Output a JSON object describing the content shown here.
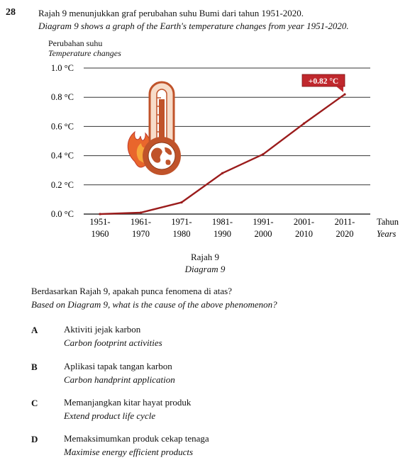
{
  "question": {
    "number": "28",
    "stem_ms": "Rajah 9 menunjukkan graf perubahan suhu Bumi dari tahun 1951-2020.",
    "stem_en": "Diagram 9 shows a graph of the Earth's temperature changes from year 1951-2020.",
    "caption_ms": "Rajah 9",
    "caption_en": "Diagram 9",
    "ask_ms": "Berdasarkan Rajah 9, apakah punca fenomena di atas?",
    "ask_en": "Based on Diagram 9, what is the cause of the above phenomenon?",
    "options": [
      {
        "letter": "A",
        "ms": "Aktiviti jejak karbon",
        "en": "Carbon footprint activities"
      },
      {
        "letter": "B",
        "ms": "Aplikasi tapak tangan karbon",
        "en": "Carbon handprint application"
      },
      {
        "letter": "C",
        "ms": "Memanjangkan kitar hayat produk",
        "en": "Extend product life cycle"
      },
      {
        "letter": "D",
        "ms": "Memaksimumkan produk cekap tenaga",
        "en": "Maximise energy efficient products"
      }
    ]
  },
  "chart_data": {
    "type": "line",
    "ylabel_ms": "Perubahan suhu",
    "ylabel_en": "Temperature changes",
    "xlabel_ms": "Tahun",
    "xlabel_en": "Years",
    "yticks": [
      "1.0 °C",
      "0.8 °C",
      "0.6 °C",
      "0.4 °C",
      "0.2 °C",
      "0.0 °C"
    ],
    "ytick_values": [
      1.0,
      0.8,
      0.6,
      0.4,
      0.2,
      0.0
    ],
    "ylim": [
      0,
      1.0
    ],
    "categories": [
      {
        "top": "1951-",
        "bottom": "1960"
      },
      {
        "top": "1961-",
        "bottom": "1970"
      },
      {
        "top": "1971-",
        "bottom": "1980"
      },
      {
        "top": "1981-",
        "bottom": "1990"
      },
      {
        "top": "1991-",
        "bottom": "2000"
      },
      {
        "top": "2001-",
        "bottom": "2010"
      },
      {
        "top": "2011-",
        "bottom": "2020"
      }
    ],
    "values": [
      0.0,
      0.01,
      0.08,
      0.28,
      0.41,
      0.62,
      0.82
    ],
    "annotation": "+0.82 °C",
    "grid": true,
    "colors": {
      "line": "#9b1c1c",
      "annotation_bg": "#c0282d",
      "thermometer": "#c0532a"
    },
    "icon": "thermometer-earth-flame-icon"
  }
}
